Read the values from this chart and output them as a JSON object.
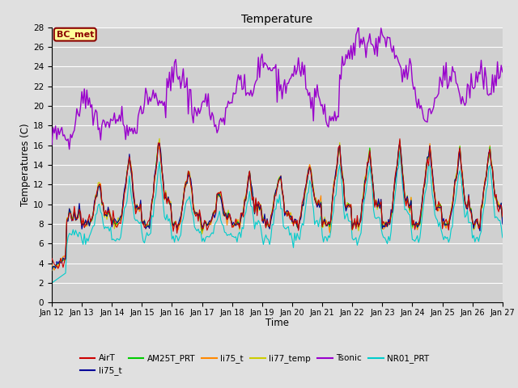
{
  "title": "Temperature",
  "xlabel": "Time",
  "ylabel": "Temperatures (C)",
  "ylim": [
    0,
    28
  ],
  "xlim": [
    0,
    360
  ],
  "background_color": "#e0e0e0",
  "plot_bg_color": "#d0d0d0",
  "grid_color": "#ffffff",
  "annotation_text": "BC_met",
  "annotation_bg": "#ffff99",
  "annotation_border": "#8b0000",
  "tick_labels": [
    "Jan 12",
    "Jan 13",
    "Jan 14",
    "Jan 15",
    "Jan 16",
    "Jan 17",
    "Jan 18",
    "Jan 19",
    "Jan 20",
    "Jan 21",
    "Jan 22",
    "Jan 23",
    "Jan 24",
    "Jan 25",
    "Jan 26",
    "Jan 27"
  ],
  "tick_positions": [
    0,
    24,
    48,
    72,
    96,
    120,
    144,
    168,
    192,
    216,
    240,
    264,
    288,
    312,
    336,
    360
  ],
  "series_colors": {
    "AirT": "#cc0000",
    "li75_t_blue": "#000099",
    "AM25T_PRT": "#00cc00",
    "li75_t_orange": "#ff8800",
    "li77_temp": "#cccc00",
    "Tsonic": "#9900cc",
    "NR01_PRT": "#00cccc"
  },
  "n_points": 361,
  "figsize": [
    6.4,
    4.8
  ],
  "dpi": 100
}
